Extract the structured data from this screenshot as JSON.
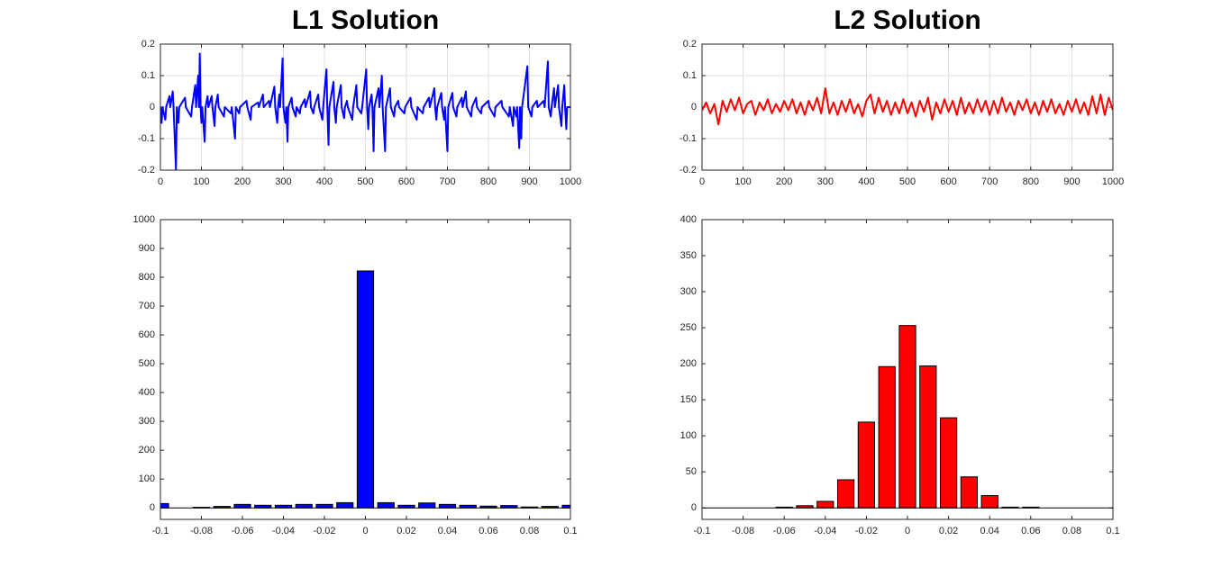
{
  "chart_data": [
    {
      "type": "line",
      "title": "L1 Solution",
      "color": "#0000ff",
      "grid": true,
      "xlim": [
        0,
        1000
      ],
      "xticks": [
        0,
        100,
        200,
        300,
        400,
        500,
        600,
        700,
        800,
        900,
        1000
      ],
      "ylim": [
        -0.2,
        0.2
      ],
      "yticks": [
        -0.2,
        -0.1,
        0,
        0.1,
        0.2
      ],
      "x": [
        0,
        3,
        5,
        12,
        14,
        22,
        24,
        30,
        32,
        38,
        40,
        44,
        46,
        60,
        62,
        75,
        77,
        85,
        87,
        92,
        94,
        96,
        98,
        100,
        102,
        108,
        110,
        115,
        117,
        125,
        127,
        132,
        134,
        140,
        142,
        155,
        157,
        172,
        174,
        182,
        184,
        192,
        194,
        210,
        212,
        220,
        222,
        238,
        240,
        250,
        252,
        265,
        267,
        278,
        280,
        285,
        287,
        290,
        292,
        298,
        300,
        305,
        307,
        310,
        312,
        320,
        322,
        330,
        332,
        340,
        342,
        352,
        354,
        365,
        367,
        373,
        375,
        385,
        387,
        395,
        397,
        405,
        407,
        410,
        412,
        422,
        424,
        428,
        430,
        440,
        442,
        448,
        450,
        455,
        457,
        468,
        470,
        478,
        480,
        490,
        492,
        502,
        504,
        507,
        509,
        515,
        517,
        520,
        522,
        532,
        534,
        540,
        542,
        548,
        550,
        560,
        562,
        570,
        572,
        580,
        582,
        595,
        597,
        610,
        612,
        625,
        627,
        640,
        642,
        655,
        657,
        668,
        670,
        673,
        675,
        685,
        687,
        692,
        694,
        700,
        702,
        712,
        714,
        722,
        724,
        735,
        737,
        745,
        747,
        758,
        760,
        770,
        772,
        782,
        784,
        800,
        802,
        815,
        817,
        832,
        834,
        850,
        852,
        860,
        862,
        868,
        870,
        875,
        877,
        880,
        882,
        895,
        897,
        905,
        907,
        918,
        920,
        935,
        937,
        945,
        947,
        952,
        954,
        960,
        962,
        970,
        972,
        978,
        980,
        985,
        987,
        990,
        992,
        1000
      ],
      "values": [
        0,
        -0.05,
        0,
        -0.04,
        0,
        0.035,
        0,
        0.05,
        0,
        -0.2,
        0,
        -0.05,
        0,
        0.03,
        0,
        -0.03,
        0,
        0.07,
        0,
        0.1,
        0,
        0.17,
        0,
        -0.05,
        0,
        -0.11,
        0,
        0.035,
        0,
        0.035,
        0,
        -0.06,
        0,
        0.04,
        0,
        -0.03,
        0,
        -0.02,
        0,
        -0.1,
        0,
        -0.02,
        0,
        0.02,
        0,
        -0.04,
        0,
        0.015,
        0,
        0.04,
        0,
        0.02,
        0,
        0.065,
        0,
        -0.05,
        0,
        0.04,
        0,
        0.155,
        0,
        -0.05,
        0,
        -0.11,
        0,
        0.03,
        0,
        -0.03,
        0,
        -0.02,
        0,
        0.025,
        0,
        0.05,
        0,
        -0.02,
        0,
        0.04,
        0,
        -0.04,
        0,
        0.12,
        0,
        -0.12,
        0,
        0.08,
        0,
        -0.05,
        0,
        0.07,
        0,
        -0.035,
        0,
        0.02,
        0,
        -0.04,
        0,
        0.07,
        0,
        -0.02,
        0,
        0.12,
        0,
        -0.07,
        0,
        0.04,
        0,
        -0.14,
        0,
        0.06,
        0,
        0.1,
        0,
        -0.14,
        0,
        0.06,
        0,
        -0.03,
        0,
        0.02,
        0,
        -0.02,
        0,
        0.03,
        0,
        -0.04,
        0,
        -0.02,
        0,
        0.03,
        0,
        0.06,
        0,
        -0.04,
        0,
        0.045,
        0,
        -0.04,
        0,
        -0.14,
        0,
        0.045,
        0,
        -0.03,
        0,
        0.03,
        0,
        0.05,
        0,
        -0.03,
        0,
        0.03,
        0,
        -0.02,
        0,
        0.02,
        0,
        -0.03,
        0,
        0.02,
        0,
        -0.03,
        0,
        -0.06,
        0,
        -0.03,
        0,
        -0.13,
        0,
        -0.1,
        0,
        0.13,
        0,
        -0.03,
        0,
        0.02,
        0,
        0.02,
        0,
        0.145,
        0,
        -0.03,
        0,
        0.06,
        0,
        0.07,
        0,
        -0.06,
        0,
        0.07,
        0,
        -0.07,
        0,
        0
      ]
    },
    {
      "type": "line",
      "title": "L2 Solution",
      "color": "#ff0000",
      "grid": true,
      "xlim": [
        0,
        1000
      ],
      "xticks": [
        0,
        100,
        200,
        300,
        400,
        500,
        600,
        700,
        800,
        900,
        1000
      ],
      "ylim": [
        -0.2,
        0.2
      ],
      "yticks": [
        -0.2,
        -0.1,
        0,
        0.1,
        0.2
      ],
      "x": [
        0,
        10,
        20,
        30,
        40,
        50,
        60,
        70,
        80,
        90,
        100,
        110,
        120,
        130,
        140,
        150,
        160,
        170,
        180,
        190,
        200,
        210,
        220,
        230,
        240,
        250,
        260,
        270,
        280,
        290,
        300,
        310,
        320,
        330,
        340,
        350,
        360,
        370,
        380,
        390,
        400,
        410,
        420,
        430,
        440,
        450,
        460,
        470,
        480,
        490,
        500,
        510,
        520,
        530,
        540,
        550,
        560,
        570,
        580,
        590,
        600,
        610,
        620,
        630,
        640,
        650,
        660,
        670,
        680,
        690,
        700,
        710,
        720,
        730,
        740,
        750,
        760,
        770,
        780,
        790,
        800,
        810,
        820,
        830,
        840,
        850,
        860,
        870,
        880,
        890,
        900,
        910,
        920,
        930,
        940,
        950,
        960,
        970,
        980,
        990,
        1000
      ],
      "values": [
        -0.01,
        0.015,
        -0.02,
        0.01,
        -0.055,
        0.02,
        -0.015,
        0.025,
        -0.01,
        0.03,
        -0.02,
        0.01,
        0.02,
        -0.025,
        0.015,
        -0.01,
        0.025,
        -0.02,
        0.01,
        -0.015,
        0.02,
        -0.01,
        0.025,
        -0.02,
        0.015,
        -0.025,
        0.02,
        -0.01,
        0.03,
        -0.02,
        0.06,
        -0.02,
        0.015,
        -0.025,
        0.02,
        -0.015,
        0.025,
        -0.02,
        0.01,
        -0.03,
        0.02,
        0.04,
        -0.02,
        0.03,
        -0.015,
        0.02,
        -0.025,
        0.015,
        -0.02,
        0.025,
        -0.02,
        0.015,
        -0.03,
        0.02,
        -0.015,
        0.03,
        -0.04,
        0.015,
        -0.02,
        0.025,
        -0.015,
        0.02,
        -0.025,
        0.03,
        -0.02,
        0.015,
        -0.02,
        0.025,
        -0.015,
        0.02,
        -0.025,
        0.02,
        -0.02,
        0.03,
        -0.015,
        0.015,
        -0.025,
        0.02,
        -0.01,
        0.025,
        -0.02,
        0.015,
        -0.025,
        0.02,
        -0.015,
        0.025,
        -0.02,
        0.01,
        -0.025,
        0.02,
        -0.015,
        0.025,
        -0.02,
        0.015,
        -0.025,
        0.035,
        -0.02,
        0.04,
        -0.025,
        0.03,
        -0.01
      ]
    },
    {
      "type": "bar",
      "color": "#0000ff",
      "edgecolor": "#000000",
      "grid": false,
      "xlim": [
        -0.1,
        0.1
      ],
      "xticks": [
        -0.1,
        -0.08,
        -0.06,
        -0.04,
        -0.02,
        0,
        0.02,
        0.04,
        0.06,
        0.08,
        0.1
      ],
      "ylim": [
        -40,
        1000
      ],
      "yticks": [
        0,
        100,
        200,
        300,
        400,
        500,
        600,
        700,
        800,
        900,
        1000
      ],
      "x": [
        -0.1,
        -0.09,
        -0.08,
        -0.07,
        -0.06,
        -0.05,
        -0.04,
        -0.03,
        -0.02,
        -0.01,
        0,
        0.01,
        0.02,
        0.03,
        0.04,
        0.05,
        0.06,
        0.07,
        0.08,
        0.09,
        0.1
      ],
      "values": [
        15,
        0,
        2,
        5,
        12,
        9,
        9,
        12,
        12,
        18,
        822,
        18,
        9,
        17,
        12,
        9,
        6,
        8,
        3,
        5,
        9
      ]
    },
    {
      "type": "bar",
      "color": "#ff0000",
      "edgecolor": "#000000",
      "grid": false,
      "xlim": [
        -0.1,
        0.1
      ],
      "xticks": [
        -0.1,
        -0.08,
        -0.06,
        -0.04,
        -0.02,
        0,
        0.02,
        0.04,
        0.06,
        0.08,
        0.1
      ],
      "ylim": [
        -16,
        400
      ],
      "yticks": [
        0,
        50,
        100,
        150,
        200,
        250,
        300,
        350,
        400
      ],
      "x": [
        -0.1,
        -0.09,
        -0.08,
        -0.07,
        -0.06,
        -0.05,
        -0.04,
        -0.03,
        -0.02,
        -0.01,
        0,
        0.01,
        0.02,
        0.03,
        0.04,
        0.05,
        0.06,
        0.07,
        0.08,
        0.09,
        0.1
      ],
      "values": [
        0,
        0,
        0,
        0,
        1,
        3,
        9,
        39,
        119,
        196,
        253,
        197,
        125,
        43,
        17,
        1,
        1,
        0,
        0,
        0,
        0
      ]
    }
  ]
}
